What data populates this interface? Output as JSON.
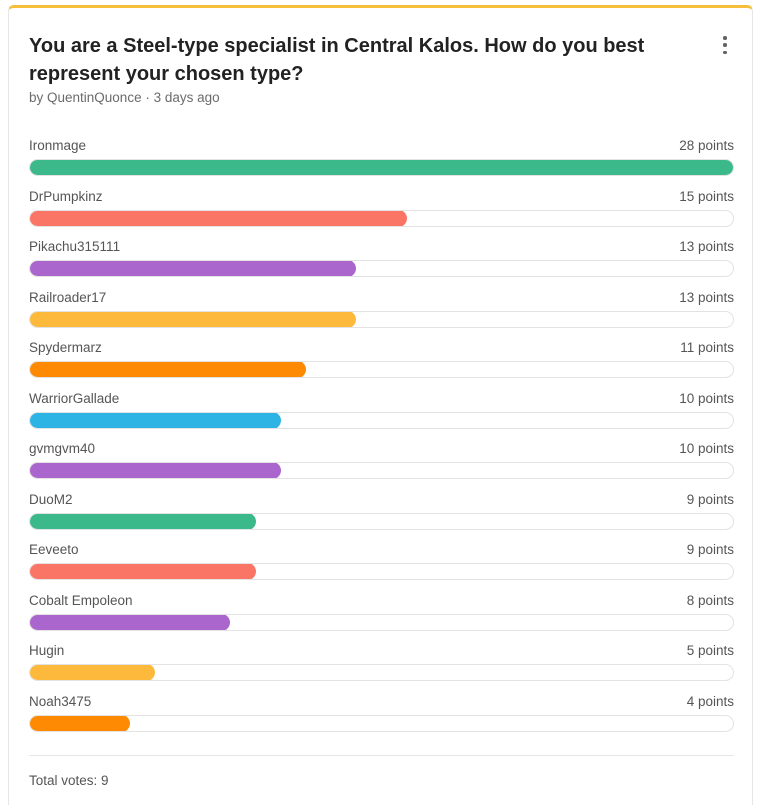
{
  "poll": {
    "title": "You are a Steel-type specialist in Central Kalos. How do you best represent your chosen type?",
    "author_line": "by QuentinQuonce · 3 days ago",
    "total_votes": "Total votes: 9",
    "max_points": 28,
    "options": [
      {
        "name": "Ironmage",
        "points_label": "28 points",
        "points": 28,
        "color": "#3cb98a"
      },
      {
        "name": "DrPumpkinz",
        "points_label": "15 points",
        "points": 15,
        "color": "#fb7566"
      },
      {
        "name": "Pikachu315111",
        "points_label": "13 points",
        "points": 13,
        "color": "#aa66cc"
      },
      {
        "name": "Railroader17",
        "points_label": "13 points",
        "points": 13,
        "color": "#fdb93c"
      },
      {
        "name": "Spydermarz",
        "points_label": "11 points",
        "points": 11,
        "color": "#fe8a03"
      },
      {
        "name": "WarriorGallade",
        "points_label": "10 points",
        "points": 10,
        "color": "#2eb4e4"
      },
      {
        "name": "gvmgvm40",
        "points_label": "10 points",
        "points": 10,
        "color": "#aa66cc"
      },
      {
        "name": "DuoM2",
        "points_label": "9 points",
        "points": 9,
        "color": "#3cb98a"
      },
      {
        "name": "Eeveeto",
        "points_label": "9 points",
        "points": 9,
        "color": "#fb7566"
      },
      {
        "name": "Cobalt Empoleon",
        "points_label": "8 points",
        "points": 8,
        "color": "#aa66cc"
      },
      {
        "name": "Hugin",
        "points_label": "5 points",
        "points": 5,
        "color": "#fdb93c"
      },
      {
        "name": "Noah3475",
        "points_label": "4 points",
        "points": 4,
        "color": "#fe8a03"
      }
    ]
  }
}
